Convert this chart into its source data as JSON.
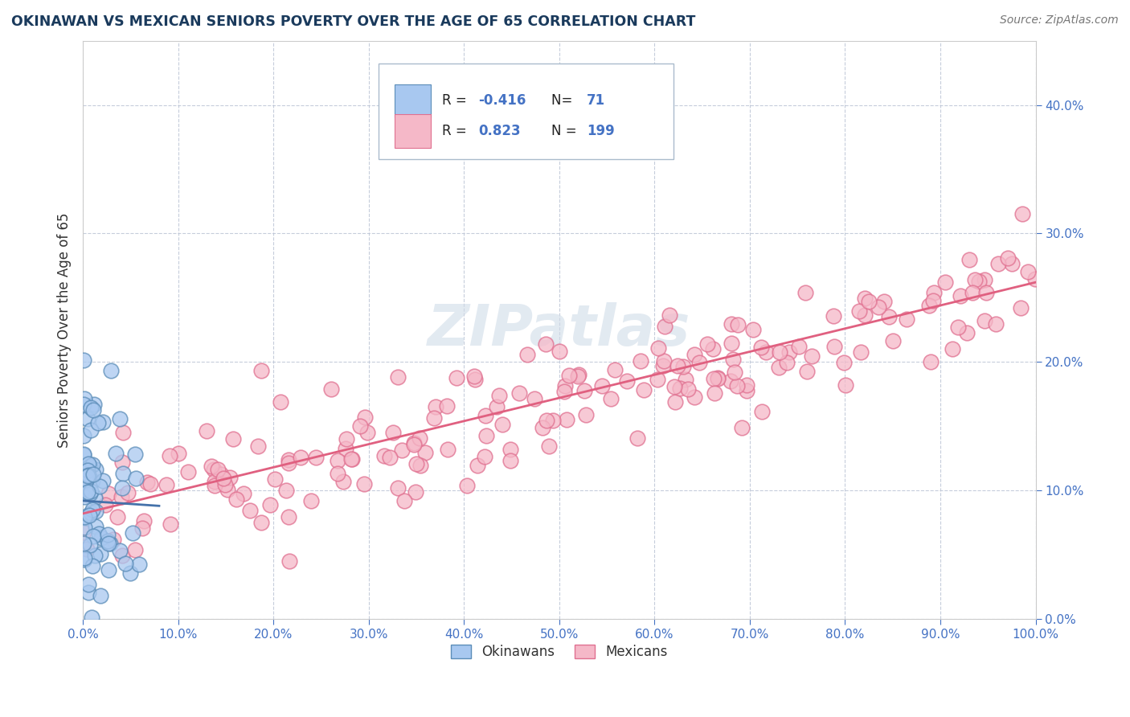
{
  "title": "OKINAWAN VS MEXICAN SENIORS POVERTY OVER THE AGE OF 65 CORRELATION CHART",
  "source": "Source: ZipAtlas.com",
  "ylabel": "Seniors Poverty Over the Age of 65",
  "legend_label1": "Okinawans",
  "legend_label2": "Mexicans",
  "r1": "-0.416",
  "n1": "71",
  "r2": "0.823",
  "n2": "199",
  "color_okinawan_fill": "#a8c8f0",
  "color_okinawan_edge": "#5b8db8",
  "color_mexican_fill": "#f5b8c8",
  "color_mexican_edge": "#e07090",
  "trendline_okinawan": "#4472aa",
  "trendline_mexican": "#e06080",
  "watermark_color": "#d0dce8",
  "background_color": "#ffffff",
  "grid_color": "#c0c8d8",
  "xlim": [
    0.0,
    1.0
  ],
  "ylim": [
    0.0,
    0.45
  ],
  "xticks": [
    0.0,
    0.1,
    0.2,
    0.3,
    0.4,
    0.5,
    0.6,
    0.7,
    0.8,
    0.9,
    1.0
  ],
  "yticks": [
    0.0,
    0.1,
    0.2,
    0.3,
    0.4
  ],
  "tick_color": "#4472c4",
  "title_color": "#1a3a5c",
  "source_color": "#777777",
  "ylabel_color": "#333333"
}
